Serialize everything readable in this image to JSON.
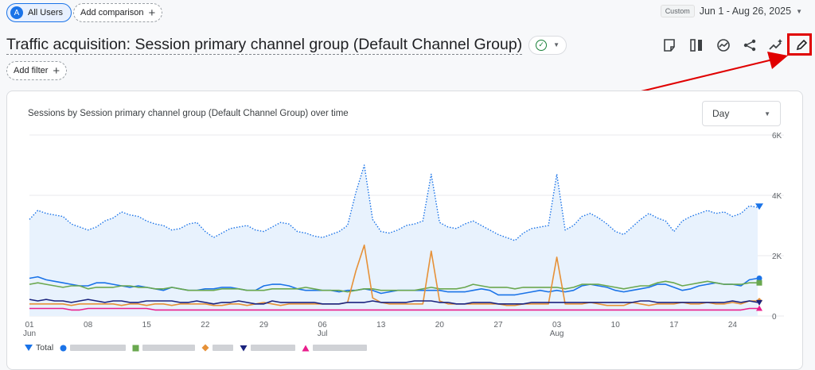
{
  "topbar": {
    "segment": {
      "initial": "A",
      "label": "All Users"
    },
    "add_comparison": "Add comparison",
    "plus": "+",
    "date": {
      "badge": "Custom",
      "range": "Jun 1 - Aug 26, 2025",
      "caret": "▼"
    }
  },
  "header": {
    "title": "Traffic acquisition: Session primary channel group (Default Channel Group)",
    "check": "✓",
    "caret": "▼",
    "add_filter": "Add filter",
    "plus": "+"
  },
  "toolbar": {
    "icons": [
      "notes-icon",
      "compare-columns-icon",
      "insights-icon",
      "share-icon",
      "spark-insights-icon",
      "pencil-edit-icon"
    ],
    "highlight_color": "#e00000"
  },
  "card": {
    "title": "Sessions by Session primary channel group (Default Channel Group) over time",
    "granularity": "Day",
    "caret": "▼"
  },
  "legend": {
    "total_label": "Total",
    "series_colors": [
      "#1a73e8",
      "#6aa84f",
      "#e69138",
      "#1a237e",
      "#e91e8c"
    ]
  },
  "chart_data": {
    "type": "line",
    "title": "Sessions by Session primary channel group (Default Channel Group) over time",
    "x_tick_labels": [
      {
        "day": "01",
        "month": "Jun"
      },
      {
        "day": "08",
        "month": ""
      },
      {
        "day": "15",
        "month": ""
      },
      {
        "day": "22",
        "month": ""
      },
      {
        "day": "29",
        "month": ""
      },
      {
        "day": "06",
        "month": "Jul"
      },
      {
        "day": "13",
        "month": ""
      },
      {
        "day": "20",
        "month": ""
      },
      {
        "day": "27",
        "month": ""
      },
      {
        "day": "03",
        "month": "Aug"
      },
      {
        "day": "10",
        "month": ""
      },
      {
        "day": "17",
        "month": ""
      },
      {
        "day": "24",
        "month": ""
      }
    ],
    "y_tick_labels": [
      "6K",
      "4K",
      "2K",
      "0"
    ],
    "ylim": [
      0,
      6000
    ],
    "grid": true,
    "legend_position": "bottom",
    "series": [
      {
        "name": "Total",
        "color": "#1a73e8",
        "style": "dotted",
        "area": true,
        "values": [
          3200,
          3500,
          3400,
          3350,
          3300,
          3050,
          2950,
          2850,
          2950,
          3150,
          3250,
          3450,
          3350,
          3300,
          3150,
          3050,
          3000,
          2850,
          2900,
          3050,
          3100,
          2800,
          2600,
          2750,
          2900,
          2950,
          3000,
          2850,
          2800,
          2950,
          3100,
          3050,
          2800,
          2750,
          2650,
          2600,
          2700,
          2800,
          3000,
          4100,
          5000,
          3200,
          2800,
          2750,
          2850,
          3000,
          3050,
          3150,
          4700,
          3100,
          2950,
          2900,
          3050,
          3150,
          3000,
          2850,
          2700,
          2600,
          2500,
          2750,
          2900,
          2950,
          3000,
          4700,
          2850,
          3000,
          3300,
          3400,
          3250,
          3050,
          2800,
          2700,
          2950,
          3200,
          3400,
          3250,
          3150,
          2800,
          3150,
          3300,
          3400,
          3500,
          3400,
          3450,
          3300,
          3400,
          3650,
          3600
        ]
      },
      {
        "values": [
          1250,
          1300,
          1200,
          1150,
          1100,
          1050,
          1000,
          1000,
          1100,
          1100,
          1050,
          1000,
          950,
          1000,
          950,
          900,
          850,
          950,
          900,
          850,
          850,
          900,
          900,
          950,
          950,
          900,
          850,
          850,
          1000,
          1050,
          1050,
          1000,
          900,
          850,
          850,
          850,
          850,
          800,
          850,
          850,
          900,
          850,
          750,
          800,
          850,
          850,
          850,
          850,
          850,
          850,
          800,
          800,
          800,
          850,
          900,
          850,
          700,
          700,
          700,
          750,
          800,
          850,
          800,
          850,
          800,
          850,
          1000,
          1050,
          1000,
          950,
          850,
          800,
          850,
          900,
          950,
          1050,
          1050,
          950,
          850,
          900,
          1000,
          1050,
          1100,
          1050,
          1050,
          1000,
          1200,
          1250
        ]
      },
      {
        "values": [
          1050,
          1100,
          1050,
          1000,
          950,
          1000,
          1000,
          900,
          950,
          950,
          950,
          1000,
          1000,
          950,
          950,
          900,
          900,
          950,
          900,
          850,
          850,
          850,
          850,
          900,
          900,
          900,
          850,
          850,
          850,
          900,
          900,
          900,
          900,
          950,
          900,
          850,
          850,
          850,
          800,
          850,
          900,
          900,
          850,
          850,
          850,
          850,
          850,
          900,
          950,
          900,
          900,
          900,
          950,
          1050,
          1000,
          950,
          950,
          950,
          900,
          950,
          950,
          950,
          950,
          950,
          900,
          950,
          1050,
          1050,
          1050,
          1000,
          950,
          900,
          950,
          1000,
          1000,
          1100,
          1150,
          1100,
          1000,
          1050,
          1100,
          1150,
          1100,
          1050,
          1050,
          1050,
          1100,
          1100
        ]
      },
      {
        "values": [
          400,
          400,
          400,
          400,
          400,
          350,
          400,
          400,
          400,
          400,
          400,
          350,
          400,
          400,
          350,
          400,
          400,
          350,
          400,
          400,
          400,
          400,
          350,
          350,
          400,
          400,
          350,
          400,
          450,
          400,
          350,
          400,
          400,
          400,
          400,
          400,
          400,
          400,
          450,
          1500,
          2350,
          600,
          450,
          400,
          400,
          400,
          400,
          400,
          2150,
          500,
          400,
          400,
          400,
          400,
          400,
          400,
          400,
          350,
          350,
          400,
          400,
          400,
          400,
          1950,
          400,
          400,
          400,
          450,
          400,
          350,
          350,
          350,
          450,
          400,
          350,
          400,
          400,
          400,
          450,
          400,
          400,
          450,
          400,
          400,
          450,
          400,
          500,
          500
        ]
      },
      {
        "values": [
          550,
          500,
          550,
          500,
          500,
          450,
          500,
          550,
          500,
          450,
          500,
          500,
          450,
          450,
          500,
          500,
          500,
          500,
          450,
          450,
          500,
          450,
          400,
          450,
          450,
          500,
          450,
          400,
          400,
          500,
          450,
          450,
          450,
          450,
          450,
          400,
          400,
          400,
          450,
          450,
          450,
          500,
          450,
          450,
          450,
          450,
          500,
          500,
          500,
          450,
          450,
          400,
          400,
          450,
          450,
          450,
          400,
          400,
          400,
          400,
          450,
          450,
          450,
          450,
          450,
          450,
          450,
          450,
          450,
          450,
          450,
          450,
          450,
          500,
          500,
          450,
          450,
          450,
          450,
          450,
          450,
          450,
          450,
          450,
          500,
          450,
          500,
          450
        ]
      },
      {
        "values": [
          250,
          250,
          250,
          250,
          250,
          200,
          200,
          250,
          250,
          250,
          250,
          250,
          250,
          250,
          250,
          200,
          200,
          200,
          200,
          200,
          200,
          200,
          200,
          200,
          200,
          200,
          200,
          200,
          200,
          200,
          200,
          200,
          200,
          200,
          200,
          200,
          200,
          200,
          200,
          200,
          200,
          200,
          200,
          200,
          200,
          200,
          200,
          200,
          200,
          200,
          200,
          200,
          200,
          200,
          200,
          200,
          200,
          200,
          200,
          200,
          200,
          200,
          200,
          200,
          200,
          200,
          200,
          200,
          200,
          200,
          200,
          200,
          200,
          200,
          200,
          200,
          200,
          200,
          200,
          200,
          200,
          200,
          200,
          200,
          200,
          200,
          250,
          250
        ]
      }
    ]
  }
}
